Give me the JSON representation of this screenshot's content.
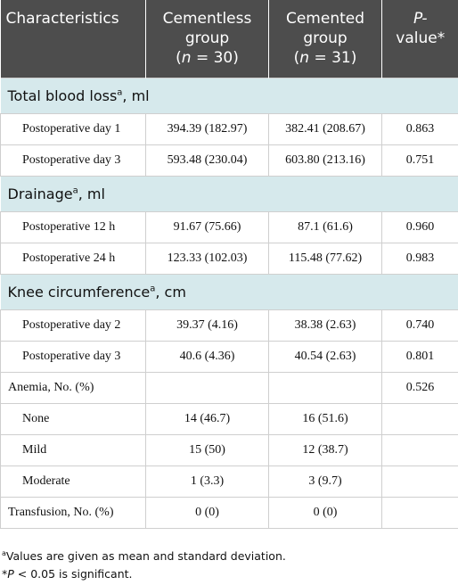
{
  "header": {
    "col1": "Characteristics",
    "col2_line1": "Cementless",
    "col2_line2_pre": "group",
    "col2_n": "n",
    "col2_eq": " = 30)",
    "col3_line1": "Cemented",
    "col3_line2_pre": "group",
    "col3_n": "n",
    "col3_eq": " = 31)",
    "col4_p": "P-",
    "col4_value": "value*"
  },
  "sections": {
    "blood_loss": {
      "label": "Total blood loss",
      "sup": "a",
      "unit": ", ml"
    },
    "drainage": {
      "label": "Drainage",
      "sup": "a",
      "unit": ", ml"
    },
    "knee": {
      "label": "Knee circumference",
      "sup": "a",
      "unit": ", cm"
    }
  },
  "rows": {
    "bl_day1": {
      "label": "Postoperative day 1",
      "cementless": "394.39 (182.97)",
      "cemented": "382.41 (208.67)",
      "p": "0.863"
    },
    "bl_day3": {
      "label": "Postoperative day 3",
      "cementless": "593.48 (230.04)",
      "cemented": "603.80 (213.16)",
      "p": "0.751"
    },
    "dr_12h": {
      "label": "Postoperative 12 h",
      "cementless": "91.67 (75.66)",
      "cemented": "87.1 (61.6)",
      "p": "0.960"
    },
    "dr_24h": {
      "label": "Postoperative 24 h",
      "cementless": "123.33 (102.03)",
      "cemented": "115.48 (77.62)",
      "p": "0.983"
    },
    "kc_day2": {
      "label": "Postoperative day 2",
      "cementless": "39.37 (4.16)",
      "cemented": "38.38 (2.63)",
      "p": "0.740"
    },
    "kc_day3": {
      "label": "Postoperative day 3",
      "cementless": "40.6 (4.36)",
      "cemented": "40.54 (2.63)",
      "p": "0.801"
    },
    "anemia": {
      "label": "Anemia, No. (%)",
      "cementless": "",
      "cemented": "",
      "p": "0.526"
    },
    "none": {
      "label": "None",
      "cementless": "14 (46.7)",
      "cemented": "16 (51.6)",
      "p": ""
    },
    "mild": {
      "label": "Mild",
      "cementless": "15 (50)",
      "cemented": "12 (38.7)",
      "p": ""
    },
    "moderate": {
      "label": "Moderate",
      "cementless": "1 (3.3)",
      "cemented": "3 (9.7)",
      "p": ""
    },
    "transfusion": {
      "label": "Transfusion, No. (%)",
      "cementless": "0 (0)",
      "cemented": "0 (0)",
      "p": ""
    }
  },
  "footnotes": {
    "a_sup": "a",
    "a_text": "Values are given as mean and standard deviation.",
    "b_pre": "*",
    "b_p": "P",
    "b_text": " < 0.05 is significant."
  },
  "colors": {
    "header_bg": "#4d4d4d",
    "section_bg": "#d6e9ec"
  }
}
